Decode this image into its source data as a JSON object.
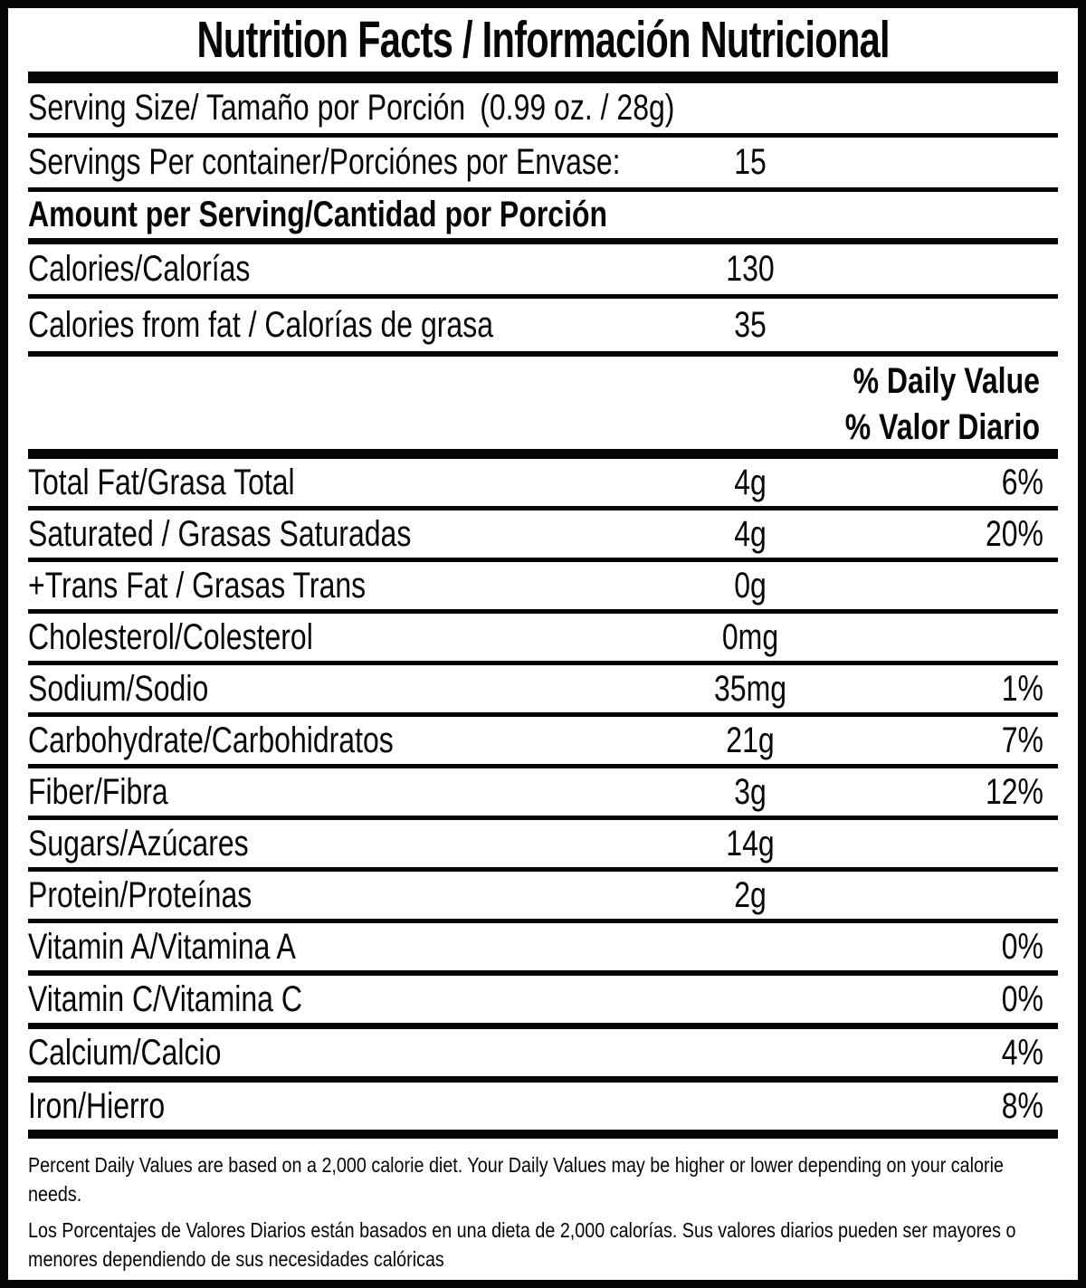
{
  "label": {
    "title": "Nutrition Facts / Información Nutricional",
    "serving_size": {
      "label": "Serving Size/ Tamaño por Porción",
      "value": "(0.99 oz. / 28g)"
    },
    "servings_per_container": {
      "label": "Servings Per container/Porciónes por Envase:",
      "value": "15"
    },
    "amount_per_serving_header": "Amount per Serving/Cantidad por Porción",
    "calories": {
      "label": "Calories/Calorías",
      "value": "130"
    },
    "calories_from_fat": {
      "label": "Calories from fat / Calorías de grasa",
      "value": "35"
    },
    "daily_value_header_en": "% Daily Value",
    "daily_value_header_es": "% Valor Diario",
    "nutrients": [
      {
        "label": "Total Fat/Grasa Total",
        "amount": "4g",
        "dv": "6%"
      },
      {
        "label": "Saturated / Grasas Saturadas",
        "amount": "4g",
        "dv": "20%"
      },
      {
        "label": "+Trans Fat / Grasas Trans",
        "amount": "0g",
        "dv": ""
      },
      {
        "label": "Cholesterol/Colesterol",
        "amount": "0mg",
        "dv": ""
      },
      {
        "label": "Sodium/Sodio",
        "amount": "35mg",
        "dv": "1%"
      },
      {
        "label": "Carbohydrate/Carbohidratos",
        "amount": "21g",
        "dv": "7%"
      },
      {
        "label": "Fiber/Fibra",
        "amount": "3g",
        "dv": "12%"
      },
      {
        "label": "Sugars/Azúcares",
        "amount": "14g",
        "dv": ""
      },
      {
        "label": "Protein/Proteínas",
        "amount": "2g",
        "dv": ""
      }
    ],
    "vitamins": [
      {
        "label": "Vitamin A/Vitamina A",
        "dv": "0%"
      },
      {
        "label": "Vitamin C/Vitamina C",
        "dv": "0%"
      },
      {
        "label": "Calcium/Calcio",
        "dv": "4%"
      },
      {
        "label": "Iron/Hierro",
        "dv": "8%"
      }
    ],
    "footnote_en": "Percent Daily Values are based on a 2,000 calorie diet. Your Daily Values may be higher or lower depending on your calorie needs.",
    "footnote_es": "Los Porcentajes de Valores Diarios están basados en una dieta de 2,000 calorías. Sus valores diarios pueden ser mayores o menores dependiendo de sus necesidades calóricas",
    "colors": {
      "text": "#060606",
      "background": "#ffffff",
      "rule": "#060606"
    }
  }
}
